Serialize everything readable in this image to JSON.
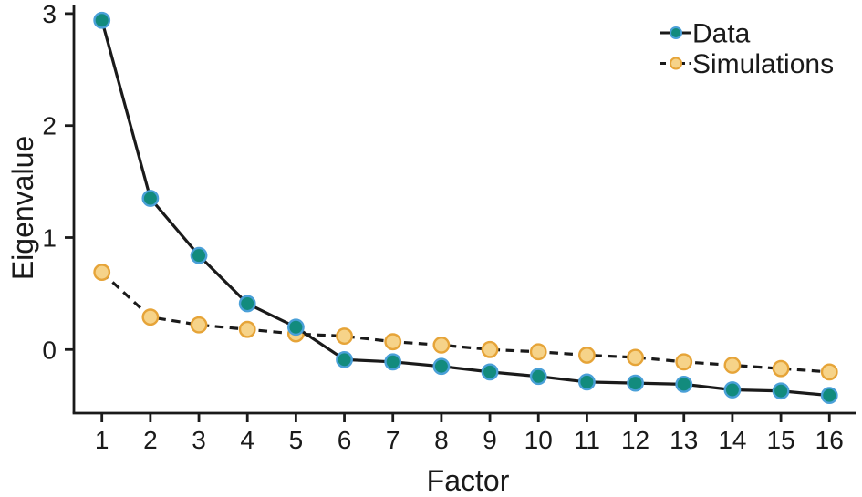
{
  "figure": {
    "background_color": "#ffffff",
    "axis_color": "#1a1a1a",
    "text_color": "#1a1a1a"
  },
  "chart_data": {
    "type": "line",
    "title": "",
    "xlabel": "Factor",
    "ylabel": "Eigenvalue",
    "x": [
      1,
      2,
      3,
      4,
      5,
      6,
      7,
      8,
      9,
      10,
      11,
      12,
      13,
      14,
      15,
      16
    ],
    "x_tick_labels": [
      "1",
      "2",
      "3",
      "4",
      "5",
      "6",
      "7",
      "8",
      "9",
      "10",
      "11",
      "12",
      "13",
      "14",
      "15",
      "16"
    ],
    "y_ticks": [
      0,
      1,
      2,
      3
    ],
    "y_tick_labels": [
      "0",
      "1",
      "2",
      "3"
    ],
    "xlim": [
      0.45,
      16.55
    ],
    "ylim": [
      -0.57,
      3.06
    ],
    "grid": false,
    "legend_position": "top-right",
    "series": [
      {
        "name": "Data",
        "line_style": "solid",
        "line_color": "#1a1a1a",
        "marker": "circle",
        "marker_fill": "#128b7d",
        "marker_stroke": "#4aa0d8",
        "values": [
          2.94,
          1.35,
          0.84,
          0.41,
          0.2,
          -0.09,
          -0.11,
          -0.15,
          -0.2,
          -0.24,
          -0.29,
          -0.3,
          -0.31,
          -0.36,
          -0.37,
          -0.41
        ]
      },
      {
        "name": "Simulations",
        "line_style": "dashed",
        "line_color": "#1a1a1a",
        "marker": "circle",
        "marker_fill": "#f6d389",
        "marker_stroke": "#e6a438",
        "values": [
          0.69,
          0.29,
          0.22,
          0.18,
          0.14,
          0.12,
          0.07,
          0.04,
          0.0,
          -0.02,
          -0.05,
          -0.07,
          -0.11,
          -0.14,
          -0.17,
          -0.2
        ]
      }
    ]
  }
}
